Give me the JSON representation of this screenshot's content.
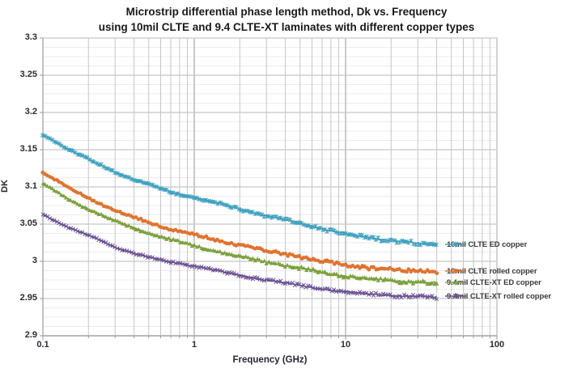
{
  "title": {
    "line1": "Microstrip differential phase length method, Dk vs. Frequency",
    "line2": "using 10mil CLTE and 9.4 CLTE-XT laminates with different copper types"
  },
  "axes": {
    "x": {
      "label": "Frequency (GHz)",
      "scale": "log",
      "min": 0.1,
      "max": 100,
      "ticks": [
        "0.1",
        "1",
        "10",
        "100"
      ]
    },
    "y": {
      "label": "DK",
      "min": 2.9,
      "max": 3.3,
      "major_step": 0.05,
      "ticks": [
        "3.3",
        "3.25",
        "3.2",
        "3.15",
        "3.1",
        "3.05",
        "3",
        "2.95",
        "2.9"
      ]
    }
  },
  "chart_data": {
    "type": "line",
    "title": "Microstrip differential phase length method, Dk vs. Frequency using 10mil CLTE and 9.4 CLTE-XT laminates with different copper types",
    "xlabel": "Frequency (GHz)",
    "ylabel": "DK",
    "x_scale": "log",
    "xlim": [
      0.1,
      100
    ],
    "ylim": [
      2.9,
      3.3
    ],
    "grid": true,
    "legend_position": "right of curve ends",
    "x": [
      0.1,
      0.15,
      0.2,
      0.3,
      0.5,
      0.7,
      1,
      1.5,
      2,
      3,
      5,
      7,
      10,
      15,
      20,
      30,
      40
    ],
    "series": [
      {
        "name": "10mil CLTE ED copper",
        "color": "#3EA0BF",
        "marker": "star",
        "values": [
          3.17,
          3.15,
          3.137,
          3.12,
          3.103,
          3.093,
          3.086,
          3.077,
          3.07,
          3.061,
          3.051,
          3.044,
          3.037,
          3.031,
          3.028,
          3.024,
          3.022
        ]
      },
      {
        "name": "10mil CLTE rolled copper",
        "color": "#E0732F",
        "marker": "circle",
        "values": [
          3.12,
          3.098,
          3.085,
          3.068,
          3.052,
          3.043,
          3.036,
          3.027,
          3.022,
          3.014,
          3.006,
          3.0,
          2.995,
          2.991,
          2.989,
          2.987,
          2.986
        ]
      },
      {
        "name": "9.4mil CLTE-XT ED copper",
        "color": "#7CA13D",
        "marker": "triangle",
        "values": [
          3.104,
          3.083,
          3.07,
          3.054,
          3.038,
          3.029,
          3.021,
          3.012,
          3.007,
          2.999,
          2.991,
          2.985,
          2.98,
          2.976,
          2.974,
          2.972,
          2.971
        ]
      },
      {
        "name": "9.4mil CLTE-XT rolled copper",
        "color": "#6C5194",
        "marker": "x",
        "values": [
          3.063,
          3.045,
          3.035,
          3.019,
          3.005,
          2.999,
          2.994,
          2.986,
          2.981,
          2.975,
          2.968,
          2.963,
          2.959,
          2.956,
          2.954,
          2.953,
          2.952
        ]
      }
    ]
  },
  "style_colors": {
    "grid_major": "#c6c6c6",
    "grid_minor_h": "#ececec",
    "grid_decade": "#b4b4b4",
    "axis_line": "#9a9a9a",
    "title_text": "#191919",
    "tick_text": "#2a2a33"
  }
}
